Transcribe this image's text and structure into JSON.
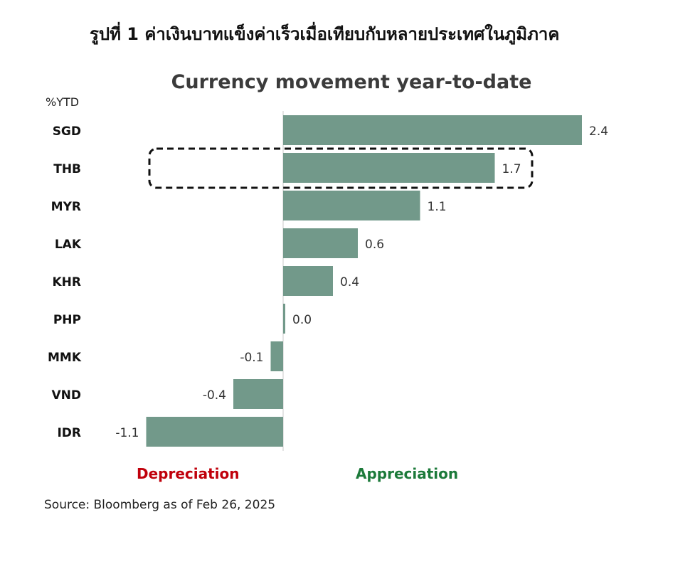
{
  "figure_heading": "รูปที่ 1 ค่าเงินบาทแข็งค่าเร็วเมื่อเทียบกับหลายประเทศในภูมิภาค",
  "chart_data": {
    "type": "bar",
    "orientation": "horizontal",
    "title": "Currency movement year-to-date",
    "unit_label": "%YTD",
    "categories": [
      "SGD",
      "THB",
      "MYR",
      "LAK",
      "KHR",
      "PHP",
      "MMK",
      "VND",
      "IDR"
    ],
    "values": [
      2.4,
      1.7,
      1.1,
      0.6,
      0.4,
      0.0,
      -0.1,
      -0.4,
      -1.1
    ],
    "value_labels": [
      "2.4",
      "1.7",
      "1.1",
      "0.6",
      "0.4",
      "0.0",
      "-0.1",
      "-0.4",
      "-1.1"
    ],
    "highlighted_category": "THB",
    "legend_negative": "Depreciation",
    "legend_positive": "Appreciation",
    "source": "Source: Bloomberg as of Feb 26, 2025",
    "grid": false
  },
  "colors": {
    "bar": "#72998a",
    "axis": "#c8c8c8",
    "depreciation": "#c0000b",
    "appreciation": "#1c7a3a",
    "highlight_border": "#111111"
  }
}
